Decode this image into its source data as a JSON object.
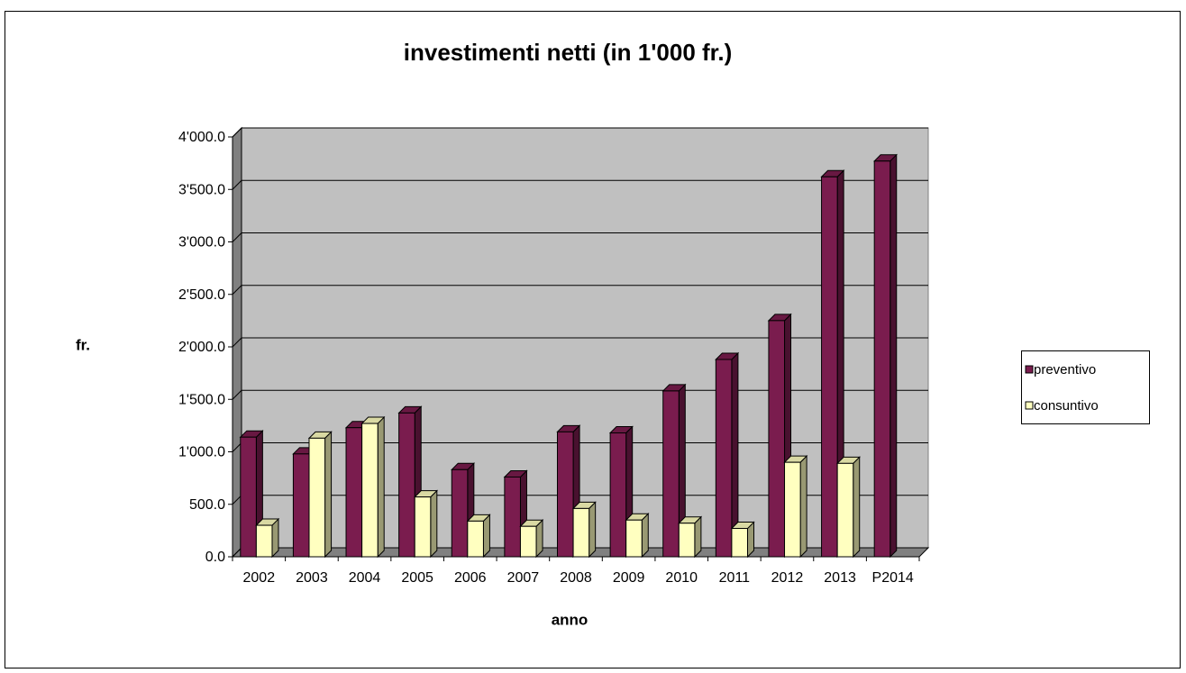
{
  "chart_data": {
    "type": "bar3d",
    "title": "investimenti netti (in 1'000 fr.)",
    "x_label": "anno",
    "y_label": "fr.",
    "categories": [
      "2002",
      "2003",
      "2004",
      "2005",
      "2006",
      "2007",
      "2008",
      "2009",
      "2010",
      "2011",
      "2012",
      "2013",
      "P2014"
    ],
    "series": [
      {
        "name": "preventivo",
        "color": "#7a1c4e",
        "values": [
          1140,
          980,
          1230,
          1370,
          830,
          760,
          1190,
          1180,
          1580,
          1880,
          2250,
          3620,
          3770
        ]
      },
      {
        "name": "consuntivo",
        "color": "#ffffc0",
        "values": [
          300,
          1130,
          1270,
          570,
          340,
          290,
          460,
          350,
          320,
          270,
          900,
          890,
          null
        ]
      }
    ],
    "ylim": [
      0,
      4000
    ],
    "yticks": [
      {
        "value": 0,
        "label": "0.0"
      },
      {
        "value": 500,
        "label": "500.0"
      },
      {
        "value": 1000,
        "label": "1'000.0"
      },
      {
        "value": 1500,
        "label": "1'500.0"
      },
      {
        "value": 2000,
        "label": "2'000.0"
      },
      {
        "value": 2500,
        "label": "2'500.0"
      },
      {
        "value": 3000,
        "label": "3'000.0"
      },
      {
        "value": 3500,
        "label": "3'500.0"
      },
      {
        "value": 4000,
        "label": "4'000.0"
      }
    ],
    "grid": true,
    "legend": "right"
  }
}
